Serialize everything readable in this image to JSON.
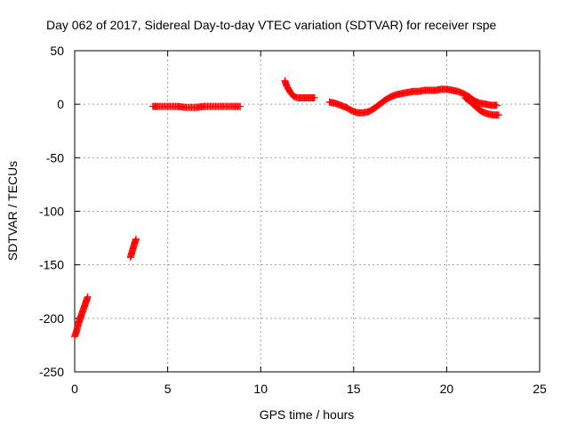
{
  "chart_data": {
    "type": "scatter",
    "title": "Day 062 of 2017, Sidereal Day-to-day VTEC variation (SDTVAR) for receiver rspe",
    "xlabel": "GPS time / hours",
    "ylabel": "SDTVAR / TECUs",
    "xlim": [
      0,
      25
    ],
    "ylim": [
      -250,
      50
    ],
    "xticks": [
      0,
      5,
      10,
      15,
      20,
      25
    ],
    "yticks": [
      -250,
      -200,
      -150,
      -100,
      -50,
      0,
      50
    ],
    "grid": true,
    "marker": "+",
    "series": [
      {
        "name": "SDTVAR",
        "color": "#ff0000",
        "segments": [
          {
            "x": [
              0.0,
              0.1,
              0.2,
              0.3,
              0.4,
              0.5,
              0.6,
              0.7
            ],
            "y": [
              -217,
              -212,
              -205,
              -200,
              -195,
              -190,
              -185,
              -180
            ]
          },
          {
            "x": [
              3.0,
              3.1,
              3.2,
              3.3
            ],
            "y": [
              -143,
              -137,
              -131,
              -126
            ]
          },
          {
            "x": [
              4.2,
              4.5,
              5.0,
              5.5,
              6.0,
              6.5,
              7.0,
              7.5,
              8.0,
              8.5,
              8.9
            ],
            "y": [
              -2,
              -2,
              -2,
              -2,
              -3,
              -3,
              -2,
              -2,
              -2,
              -2,
              -2
            ]
          },
          {
            "x": [
              11.3,
              11.4,
              11.6,
              11.8,
              12.0,
              12.3,
              12.6,
              12.9
            ],
            "y": [
              22,
              17,
              11,
              7,
              6,
              6,
              6,
              6
            ]
          },
          {
            "x": [
              13.7,
              14.0,
              14.3,
              14.6,
              14.9,
              15.2,
              15.5,
              15.8,
              16.1,
              16.4,
              16.7,
              17.0,
              17.3,
              17.6,
              17.9,
              18.2,
              18.5,
              18.8,
              19.1,
              19.4,
              19.7,
              20.0,
              20.3,
              20.6,
              20.9,
              21.2,
              21.5,
              21.8,
              22.1,
              22.4,
              22.7
            ],
            "y": [
              2,
              1,
              -1,
              -3,
              -6,
              -8,
              -8,
              -7,
              -4,
              0,
              4,
              7,
              9,
              10,
              11,
              12,
              12,
              13,
              13,
              13,
              14,
              14,
              13,
              12,
              10,
              7,
              3,
              1,
              0,
              -1,
              -1
            ]
          },
          {
            "x": [
              21.0,
              21.3,
              21.6,
              21.9,
              22.2,
              22.5,
              22.8
            ],
            "y": [
              6,
              2,
              -3,
              -7,
              -9,
              -10,
              -10
            ]
          }
        ]
      }
    ]
  }
}
